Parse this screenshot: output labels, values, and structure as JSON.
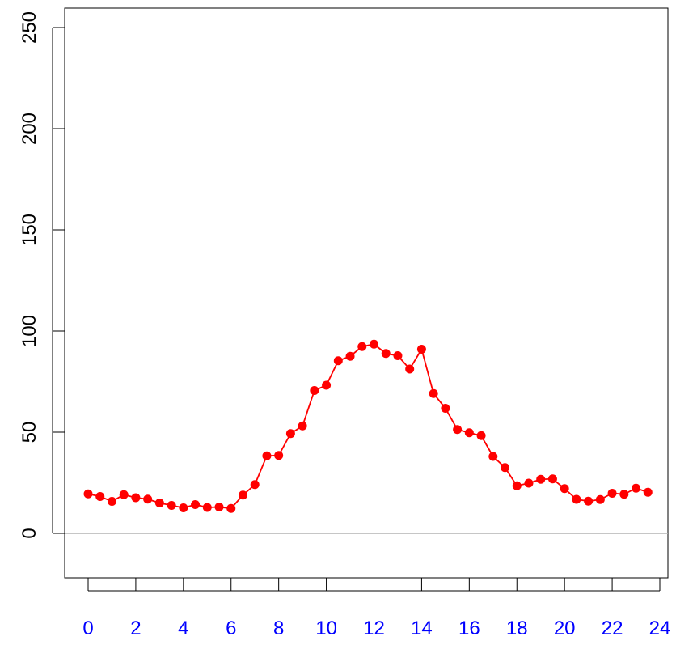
{
  "chart_data": {
    "type": "line",
    "title": "",
    "xlabel": "",
    "ylabel": "",
    "xlim": [
      0,
      24
    ],
    "ylim": [
      -20,
      250
    ],
    "x_ticks": [
      "0",
      "2",
      "4",
      "6",
      "8",
      "10",
      "12",
      "14",
      "16",
      "18",
      "20",
      "22",
      "24"
    ],
    "y_ticks": [
      "0",
      "50",
      "100",
      "150",
      "200",
      "250"
    ],
    "grid": false,
    "reference_line": {
      "y": 0,
      "color": "#b3b3b3"
    },
    "colors": {
      "series": "#ff0000",
      "x_tick_labels": "#0000ff",
      "axes": "#000000"
    },
    "series": [
      {
        "x": [
          0,
          0.5,
          1,
          1.5,
          2,
          2.5,
          3,
          3.5,
          4,
          4.5,
          5,
          5.5,
          6,
          6.5,
          7,
          7.5,
          8,
          8.5,
          9,
          9.5,
          10,
          10.5,
          11,
          11.5,
          12,
          12.5,
          13,
          13.5,
          14,
          14.5,
          15,
          15.5,
          16,
          16.5,
          17,
          17.5,
          18,
          18.5,
          19,
          19.5,
          20,
          20.5,
          21,
          21.5,
          22,
          22.5,
          23,
          23.5
        ],
        "values": [
          19.5,
          18.2,
          15.8,
          19.1,
          17.6,
          16.9,
          15.0,
          13.8,
          12.6,
          14.2,
          12.8,
          13.0,
          12.3,
          18.9,
          24.1,
          38.3,
          38.5,
          49.3,
          53.1,
          70.6,
          73.2,
          85.3,
          87.5,
          92.3,
          93.5,
          88.9,
          87.8,
          81.2,
          91.0,
          69.1,
          61.8,
          51.3,
          49.7,
          48.3,
          38.0,
          32.5,
          23.5,
          24.8,
          26.7,
          26.9,
          22.1,
          16.8,
          15.9,
          16.7,
          19.8,
          19.3,
          22.3,
          20.3
        ]
      }
    ]
  }
}
